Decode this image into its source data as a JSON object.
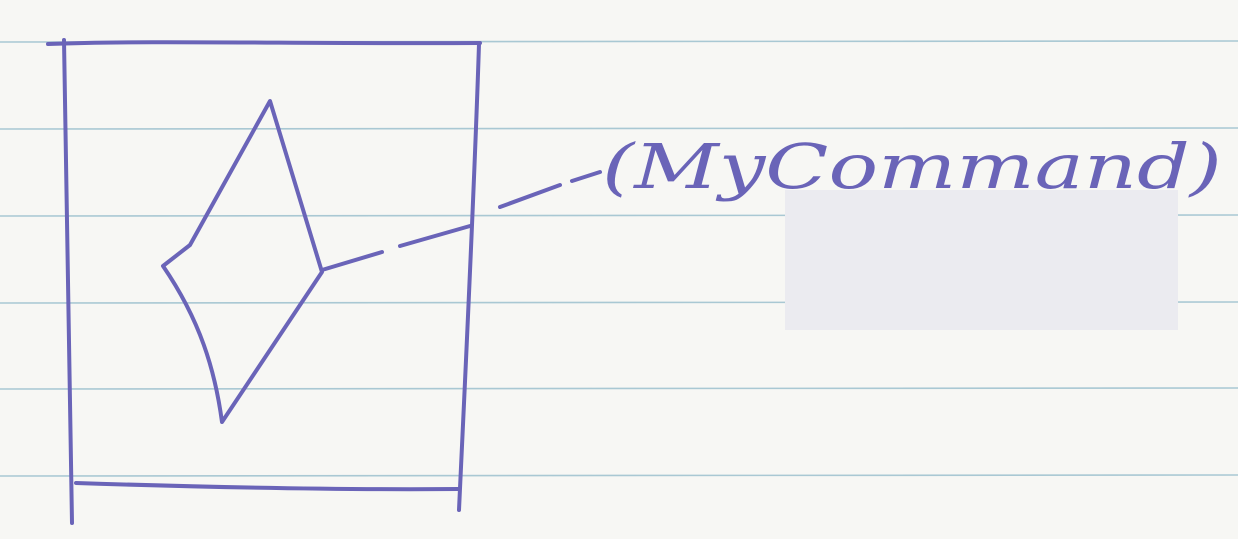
{
  "diagram": {
    "callout_text": "(MyCommand)"
  },
  "colors": {
    "paper": "#f7f7f4",
    "rule_line": "#a9c8d3",
    "ink": "#6a64b8",
    "erased_patch": "#ebebf0"
  }
}
